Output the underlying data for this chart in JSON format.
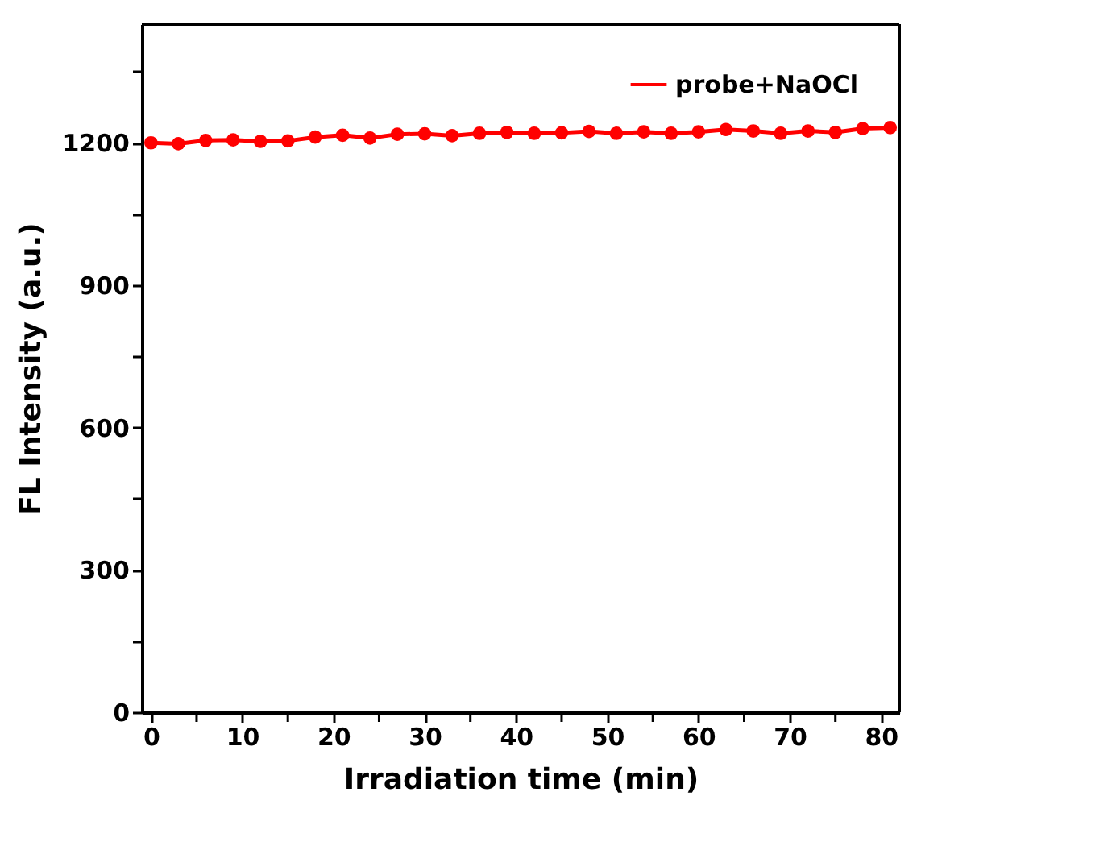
{
  "chart_data": {
    "type": "line",
    "xlabel": "Irradiation time (min)",
    "ylabel": "FL Intensity (a.u.)",
    "x": [
      0,
      3,
      6,
      9,
      12,
      15,
      18,
      21,
      24,
      27,
      30,
      33,
      36,
      39,
      42,
      45,
      48,
      51,
      54,
      57,
      60,
      63,
      66,
      69,
      72,
      75,
      78,
      81
    ],
    "series": [
      {
        "name": "probe+NaOCl",
        "color": "#ff0000",
        "values": [
          1200,
          1198,
          1205,
          1206,
          1203,
          1204,
          1212,
          1216,
          1210,
          1218,
          1219,
          1215,
          1220,
          1222,
          1220,
          1221,
          1224,
          1220,
          1223,
          1220,
          1223,
          1228,
          1225,
          1220,
          1225,
          1222,
          1230,
          1232
        ]
      }
    ],
    "xlim": [
      -1,
      82
    ],
    "ylim": [
      0,
      1450
    ],
    "xticks": [
      0,
      {
        "value": 5,
        "label": null
      },
      10,
      {
        "value": 15,
        "label": null
      },
      20,
      {
        "value": 25,
        "label": null
      },
      30,
      {
        "value": 35,
        "label": null
      },
      40,
      {
        "value": 45,
        "label": null
      },
      50,
      {
        "value": 55,
        "label": null
      },
      60,
      {
        "value": 65,
        "label": null
      },
      70,
      {
        "value": 75,
        "label": null
      },
      80
    ],
    "yticks": [
      0,
      {
        "value": 150,
        "label": null
      },
      300,
      {
        "value": 450,
        "label": null
      },
      600,
      {
        "value": 750,
        "label": null
      },
      900,
      {
        "value": 1050,
        "label": null
      },
      1200,
      {
        "value": 1350,
        "label": null
      }
    ],
    "marker": "circle",
    "line_style": "solid",
    "legend": "top right",
    "grid": false
  }
}
